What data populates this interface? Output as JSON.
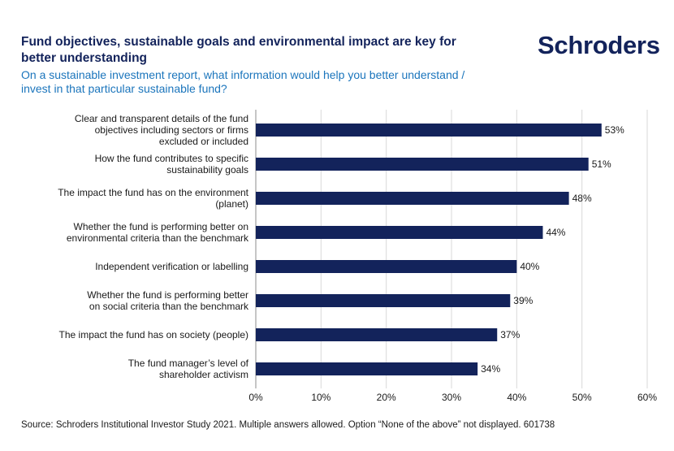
{
  "header": {
    "title": "Fund objectives, sustainable goals and environmental impact are key for better understanding",
    "subtitle": "On a sustainable investment report, what information would help you better understand / invest in that particular sustainable fund?",
    "logo_text": "Schroders"
  },
  "footer": {
    "source": "Source: Schroders Institutional Investor Study 2021. Multiple answers allowed. Option “None of the above” not displayed. 601738"
  },
  "colors": {
    "bar": "#13235b",
    "title": "#13235b",
    "subtitle": "#1b75bc",
    "grid": "#d9d9d9"
  },
  "chart_data": {
    "type": "bar",
    "orientation": "horizontal",
    "categories": [
      [
        "Clear and transparent details of the fund",
        "objectives including sectors or firms",
        "excluded or included"
      ],
      [
        "How the fund contributes to specific",
        "sustainability goals"
      ],
      [
        "The impact the fund has on the environment",
        "(planet)"
      ],
      [
        "Whether the fund is performing better on",
        "environmental criteria than the benchmark"
      ],
      [
        "Independent verification or labelling"
      ],
      [
        "Whether the fund is performing better",
        "on social criteria than the benchmark"
      ],
      [
        "The impact the fund has on society (people)"
      ],
      [
        "The fund manager’s level of",
        "shareholder activism"
      ]
    ],
    "values": [
      53,
      51,
      48,
      44,
      40,
      39,
      37,
      34
    ],
    "value_labels": [
      "53%",
      "51%",
      "48%",
      "44%",
      "40%",
      "39%",
      "37%",
      "34%"
    ],
    "xlim": [
      0,
      60
    ],
    "xticks": [
      0,
      10,
      20,
      30,
      40,
      50,
      60
    ],
    "xtick_labels": [
      "0%",
      "10%",
      "20%",
      "30%",
      "40%",
      "50%",
      "60%"
    ],
    "grid": "vertical",
    "legend": "none"
  }
}
